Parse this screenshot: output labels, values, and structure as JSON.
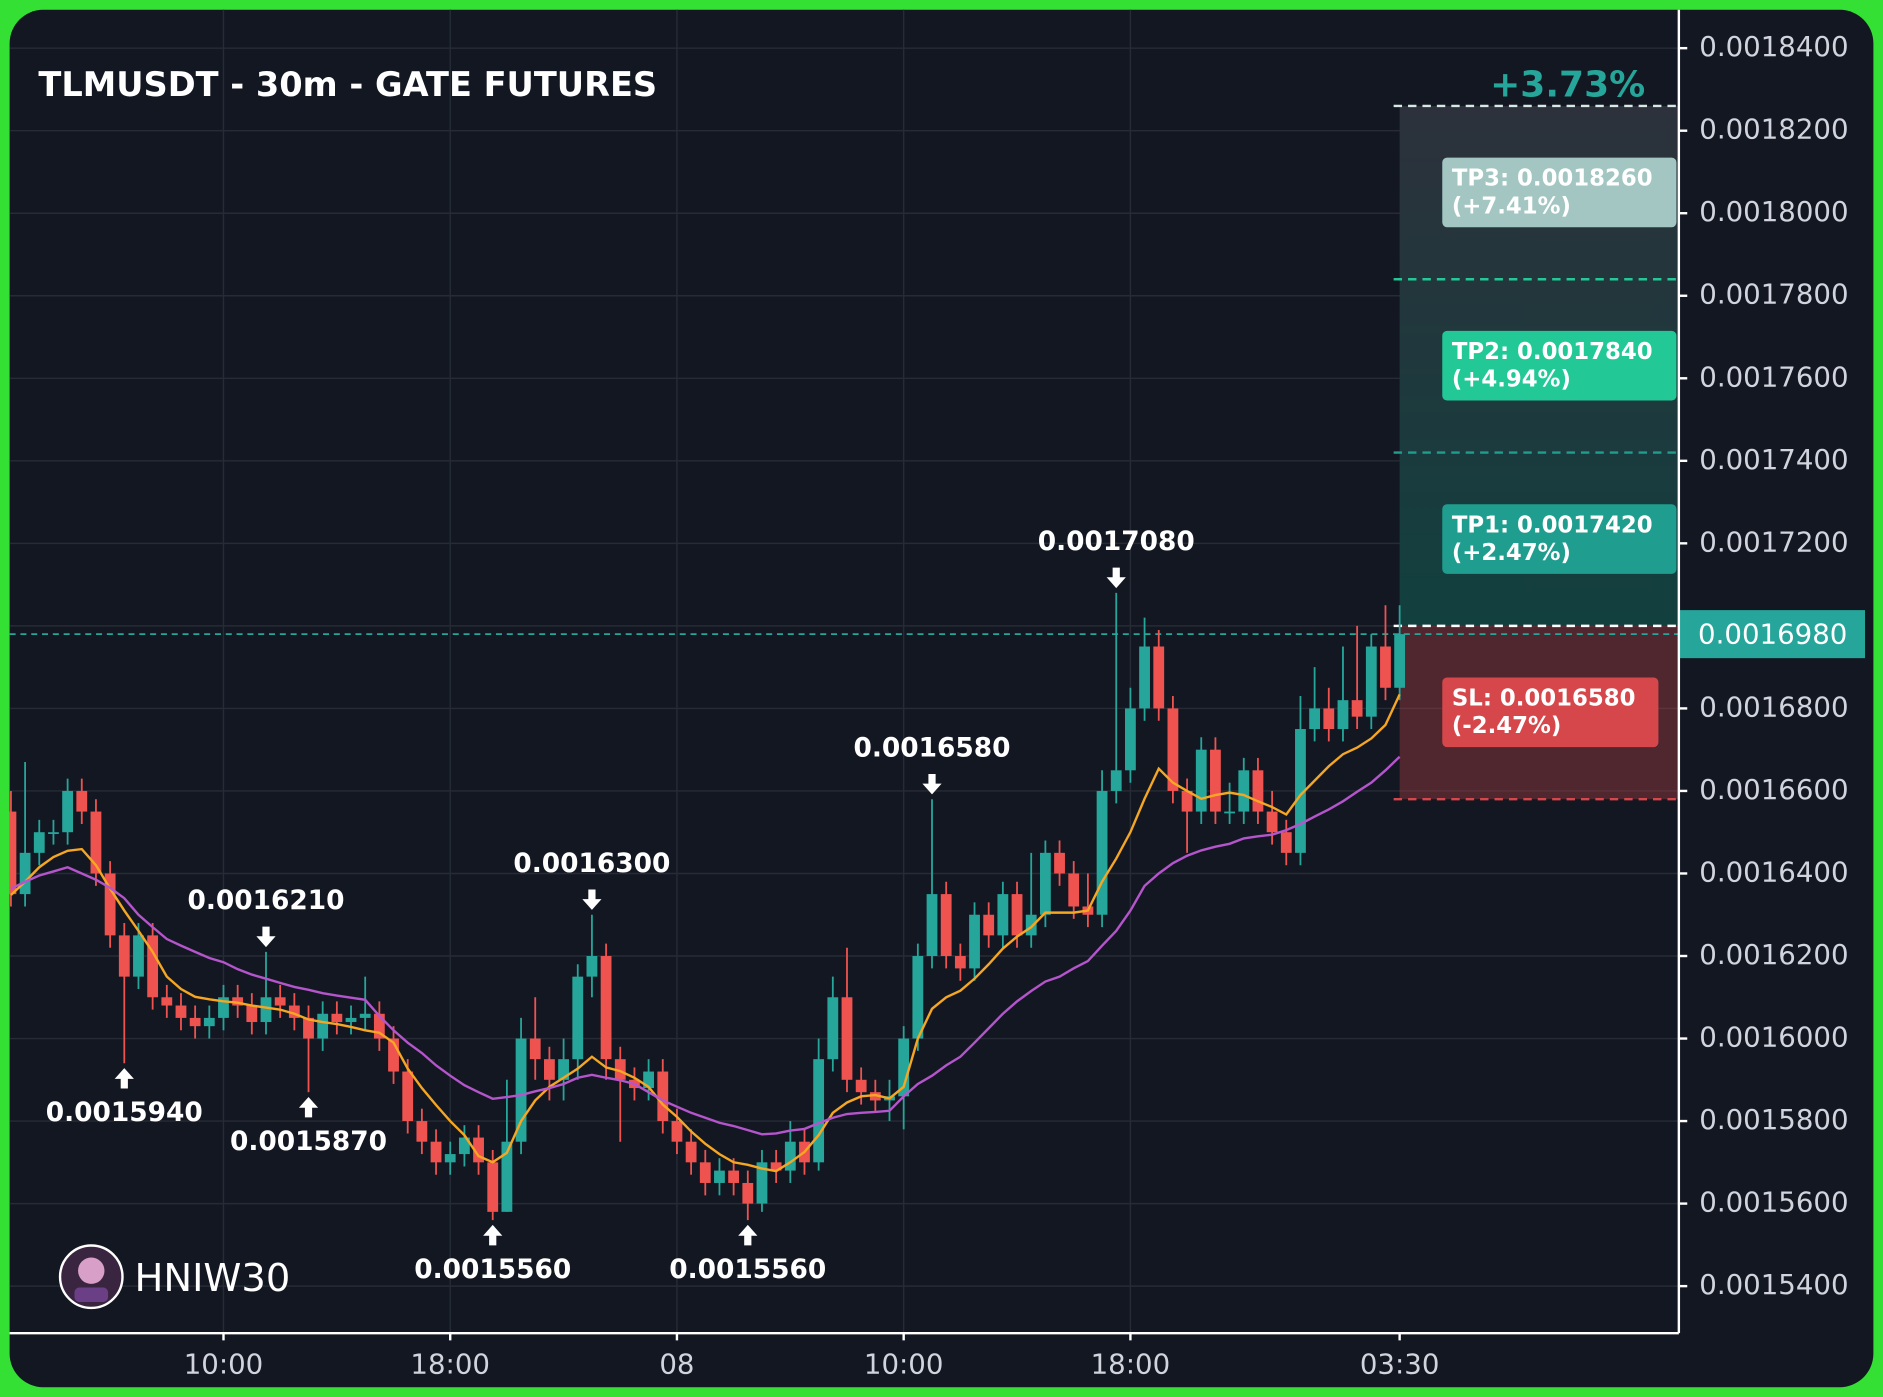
{
  "chart_data": {
    "type": "candlestick",
    "title": "TLMUSDT - 30m - GATE FUTURES",
    "watermark": "HNIW30",
    "categories": [
      null,
      null,
      null,
      null,
      null,
      null,
      null,
      null,
      null,
      null,
      null,
      null,
      null,
      null,
      null,
      "10:00",
      null,
      null,
      null,
      null,
      null,
      null,
      null,
      null,
      null,
      null,
      null,
      null,
      null,
      null,
      null,
      "18:00",
      null,
      null,
      null,
      null,
      null,
      null,
      null,
      null,
      null,
      null,
      null,
      null,
      null,
      null,
      null,
      "08",
      null,
      null,
      null,
      null,
      null,
      null,
      null,
      null,
      null,
      null,
      null,
      null,
      null,
      null,
      null,
      "10:00",
      null,
      null,
      null,
      null,
      null,
      null,
      null,
      null,
      null,
      null,
      null,
      null,
      null,
      null,
      null,
      "18:00",
      null,
      null,
      null,
      null,
      null,
      null,
      null,
      null,
      null,
      null,
      null,
      null,
      null,
      null,
      null,
      null,
      null,
      null,
      "03:30"
    ],
    "open": [
      0.001655,
      0.001635,
      0.001645,
      0.00165,
      0.00165,
      0.00166,
      0.001655,
      0.00164,
      0.001625,
      0.001615,
      0.001625,
      0.00161,
      0.001608,
      0.001605,
      0.001603,
      0.001605,
      0.00161,
      0.001608,
      0.001604,
      0.00161,
      0.001608,
      0.001605,
      0.0016,
      0.001606,
      0.001604,
      0.001605,
      0.001606,
      0.0016,
      0.001592,
      0.00158,
      0.001575,
      0.00157,
      0.001572,
      0.001576,
      0.00157,
      0.001558,
      0.001575,
      0.0016,
      0.001595,
      0.00159,
      0.001595,
      0.001615,
      0.00162,
      0.001595,
      0.00159,
      0.001588,
      0.001592,
      0.00158,
      0.001575,
      0.00157,
      0.001565,
      0.001568,
      0.001565,
      0.00156,
      0.00157,
      0.001568,
      0.001575,
      0.00157,
      0.001595,
      0.00161,
      0.00159,
      0.001587,
      0.001585,
      0.001586,
      0.0016,
      0.00162,
      0.001635,
      0.00162,
      0.001617,
      0.00163,
      0.001625,
      0.001635,
      0.001625,
      0.00163,
      0.001645,
      0.00164,
      0.001632,
      0.00163,
      0.00166,
      0.001665,
      0.00168,
      0.001695,
      0.00168,
      0.00166,
      0.001655,
      0.00167,
      0.001655,
      0.001655,
      0.001665,
      0.001655,
      0.00165,
      0.001645,
      0.001675,
      0.00168,
      0.001675,
      0.001682,
      0.001678,
      0.001695,
      0.001685
    ],
    "high": [
      0.00166,
      0.001667,
      0.001653,
      0.001653,
      0.001663,
      0.001663,
      0.001658,
      0.001643,
      0.001628,
      0.001628,
      0.001628,
      0.001613,
      0.001611,
      0.001608,
      0.001608,
      0.001613,
      0.001613,
      0.001611,
      0.001621,
      0.001613,
      0.001611,
      0.001608,
      0.001609,
      0.001609,
      0.001608,
      0.001615,
      0.001609,
      0.001603,
      0.001595,
      0.001583,
      0.001578,
      0.001575,
      0.001579,
      0.001579,
      0.001573,
      0.00159,
      0.001605,
      0.00161,
      0.001598,
      0.0016,
      0.001618,
      0.00163,
      0.001623,
      0.001598,
      0.001593,
      0.001595,
      0.001595,
      0.001583,
      0.001578,
      0.001573,
      0.001571,
      0.001571,
      0.001568,
      0.001573,
      0.001573,
      0.00158,
      0.001578,
      0.0016,
      0.001615,
      0.001622,
      0.001593,
      0.00159,
      0.00159,
      0.001603,
      0.001623,
      0.001658,
      0.001638,
      0.001623,
      0.001633,
      0.001633,
      0.001638,
      0.001638,
      0.001645,
      0.001648,
      0.001648,
      0.001643,
      0.00164,
      0.001665,
      0.001708,
      0.001685,
      0.001702,
      0.001699,
      0.001683,
      0.001663,
      0.001673,
      0.001673,
      0.001662,
      0.001668,
      0.001668,
      0.00166,
      0.001653,
      0.001683,
      0.00169,
      0.001685,
      0.001695,
      0.0017,
      0.001698,
      0.001705,
      0.001705
    ],
    "low": [
      0.001632,
      0.001632,
      0.001642,
      0.001647,
      0.001647,
      0.001652,
      0.001637,
      0.001622,
      0.001594,
      0.001612,
      0.001607,
      0.001605,
      0.001602,
      0.0016,
      0.0016,
      0.001602,
      0.001605,
      0.001601,
      0.001601,
      0.001605,
      0.001602,
      0.001587,
      0.001597,
      0.001601,
      0.001601,
      0.001602,
      0.001597,
      0.001589,
      0.001577,
      0.001572,
      0.001567,
      0.001567,
      0.001569,
      0.001567,
      0.001556,
      0.001558,
      0.001572,
      0.00159,
      0.001585,
      0.001585,
      0.00159,
      0.00161,
      0.00159,
      0.001575,
      0.001585,
      0.001585,
      0.001577,
      0.001572,
      0.001567,
      0.001562,
      0.001562,
      0.001562,
      0.001556,
      0.001558,
      0.001565,
      0.001565,
      0.001567,
      0.001568,
      0.001592,
      0.001587,
      0.001584,
      0.001582,
      0.00158,
      0.001578,
      0.001597,
      0.001617,
      0.001617,
      0.001614,
      0.001614,
      0.001622,
      0.001622,
      0.001622,
      0.001622,
      0.001627,
      0.001637,
      0.001629,
      0.001627,
      0.001627,
      0.001657,
      0.001662,
      0.001677,
      0.001677,
      0.001657,
      0.001645,
      0.001652,
      0.001652,
      0.001652,
      0.001652,
      0.001652,
      0.001647,
      0.001642,
      0.001642,
      0.001672,
      0.001672,
      0.001672,
      0.001675,
      0.001675,
      0.001682,
      0.001682
    ],
    "close": [
      0.001635,
      0.001645,
      0.00165,
      0.00165,
      0.00166,
      0.001655,
      0.00164,
      0.001625,
      0.001615,
      0.001625,
      0.00161,
      0.001608,
      0.001605,
      0.001603,
      0.001605,
      0.00161,
      0.001608,
      0.001604,
      0.00161,
      0.001608,
      0.001605,
      0.0016,
      0.001606,
      0.001604,
      0.001605,
      0.001606,
      0.0016,
      0.001592,
      0.00158,
      0.001575,
      0.00157,
      0.001572,
      0.001576,
      0.00157,
      0.001558,
      0.001575,
      0.0016,
      0.001595,
      0.00159,
      0.001595,
      0.001615,
      0.00162,
      0.001595,
      0.00159,
      0.001588,
      0.001592,
      0.00158,
      0.001575,
      0.00157,
      0.001565,
      0.001568,
      0.001565,
      0.00156,
      0.00157,
      0.001568,
      0.001575,
      0.00157,
      0.001595,
      0.00161,
      0.00159,
      0.001587,
      0.001585,
      0.001586,
      0.0016,
      0.00162,
      0.001635,
      0.00162,
      0.001617,
      0.00163,
      0.001625,
      0.001635,
      0.001625,
      0.00163,
      0.001645,
      0.00164,
      0.001632,
      0.00163,
      0.00166,
      0.001665,
      0.00168,
      0.001695,
      0.00168,
      0.00166,
      0.001655,
      0.00167,
      0.001655,
      0.001655,
      0.001665,
      0.001655,
      0.00165,
      0.001645,
      0.001675,
      0.00168,
      0.001675,
      0.001682,
      0.001678,
      0.001695,
      0.001685,
      0.001698
    ],
    "high_labels": [
      null,
      null,
      null,
      null,
      null,
      null,
      null,
      null,
      null,
      null,
      null,
      null,
      null,
      null,
      null,
      null,
      null,
      null,
      "0.0016210",
      null,
      null,
      null,
      null,
      null,
      null,
      null,
      null,
      null,
      null,
      null,
      null,
      null,
      null,
      null,
      null,
      null,
      null,
      null,
      null,
      null,
      null,
      "0.0016300",
      null,
      null,
      null,
      null,
      null,
      null,
      null,
      null,
      null,
      null,
      null,
      null,
      null,
      null,
      null,
      null,
      null,
      null,
      null,
      null,
      null,
      null,
      null,
      "0.0016580",
      null,
      null,
      null,
      null,
      null,
      null,
      null,
      null,
      null,
      null,
      null,
      null,
      "0.0017080",
      null,
      null,
      null,
      null,
      null,
      null,
      null,
      null,
      null,
      null,
      null,
      null,
      null,
      null,
      null,
      null,
      null,
      null,
      null,
      null
    ],
    "low_labels": [
      null,
      null,
      null,
      null,
      null,
      null,
      null,
      null,
      "0.0015940",
      null,
      null,
      null,
      null,
      null,
      null,
      null,
      null,
      null,
      null,
      null,
      null,
      "0.0015870",
      null,
      null,
      null,
      null,
      null,
      null,
      null,
      null,
      null,
      null,
      null,
      null,
      "0.0015560",
      null,
      null,
      null,
      null,
      null,
      null,
      null,
      null,
      null,
      null,
      null,
      null,
      null,
      null,
      null,
      null,
      null,
      "0.0015560",
      null,
      null,
      null,
      null,
      null,
      null,
      null,
      null,
      null,
      null,
      null,
      null,
      null,
      null,
      null,
      null,
      null,
      null,
      null,
      null,
      null,
      null,
      null,
      null,
      null,
      null,
      null,
      null,
      null,
      null,
      null,
      null,
      null,
      null,
      null,
      null,
      null,
      null,
      null,
      null,
      null,
      null,
      null,
      null,
      null,
      null
    ],
    "up_color": "#26a69a",
    "down_color": "#ef5350",
    "lines": [
      {
        "color": "#f5a623",
        "values": [
          0.0016348,
          0.001638,
          0.0016415,
          0.001644,
          0.0016455,
          0.0016459,
          0.001642,
          0.0016363,
          0.001631,
          0.0016261,
          0.001621,
          0.001615,
          0.001612,
          0.0016101,
          0.0016095,
          0.001609,
          0.0016087,
          0.001608,
          0.0016075,
          0.001607,
          0.001606,
          0.0016046,
          0.001604,
          0.0016035,
          0.0016028,
          0.001602,
          0.0016014,
          0.001599,
          0.0015927,
          0.001588,
          0.0015839,
          0.00158,
          0.0015766,
          0.0015715,
          0.00157,
          0.0015723,
          0.00158,
          0.001585,
          0.0015883,
          0.0015905,
          0.0015927,
          0.0015956,
          0.001593,
          0.0015921,
          0.0015905,
          0.0015883,
          0.001584,
          0.001581,
          0.0015775,
          0.0015745,
          0.001572,
          0.00157,
          0.0015694,
          0.0015685,
          0.0015679,
          0.00157,
          0.0015725,
          0.0015766,
          0.001582,
          0.0015845,
          0.001586,
          0.0015863,
          0.0015855,
          0.0015883,
          0.0016,
          0.0016072,
          0.00161,
          0.0016116,
          0.0016145,
          0.001618,
          0.0016218,
          0.0016247,
          0.001627,
          0.0016305,
          0.0016305,
          0.0016305,
          0.001631,
          0.001638,
          0.0016436,
          0.00165,
          0.0016581,
          0.0016654,
          0.001662,
          0.00166,
          0.0016581,
          0.001659,
          0.0016596,
          0.001659,
          0.0016575,
          0.0016561,
          0.0016543,
          0.001659,
          0.0016625,
          0.001666,
          0.0016689,
          0.0016705,
          0.0016727,
          0.001676,
          0.0016834
        ]
      },
      {
        "color": "#b455cc",
        "values": [
          0.0016363,
          0.001638,
          0.0016395,
          0.0016405,
          0.0016415,
          0.00164,
          0.0016385,
          0.0016365,
          0.001634,
          0.00163,
          0.001627,
          0.0016241,
          0.0016225,
          0.001621,
          0.0016195,
          0.0016185,
          0.0016168,
          0.0016155,
          0.0016145,
          0.0016135,
          0.0016125,
          0.0016118,
          0.001611,
          0.0016104,
          0.0016099,
          0.0016094,
          0.0016055,
          0.001602,
          0.001599,
          0.0015965,
          0.0015935,
          0.001591,
          0.0015887,
          0.001587,
          0.0015854,
          0.0015858,
          0.0015863,
          0.0015872,
          0.001588,
          0.001589,
          0.0015905,
          0.0015912,
          0.0015905,
          0.0015899,
          0.001589,
          0.001587,
          0.001585,
          0.0015835,
          0.001582,
          0.0015808,
          0.0015796,
          0.0015788,
          0.0015778,
          0.0015768,
          0.001577,
          0.0015777,
          0.0015781,
          0.0015795,
          0.0015808,
          0.0015817,
          0.001582,
          0.0015822,
          0.0015825,
          0.001586,
          0.001589,
          0.001591,
          0.0015935,
          0.0015956,
          0.001599,
          0.0016025,
          0.001606,
          0.001609,
          0.0016115,
          0.0016138,
          0.001615,
          0.001617,
          0.0016188,
          0.0016225,
          0.0016261,
          0.001631,
          0.001637,
          0.00164,
          0.0016425,
          0.0016443,
          0.0016456,
          0.0016465,
          0.0016472,
          0.0016485,
          0.001649,
          0.0016494,
          0.0016505,
          0.001652,
          0.0016538,
          0.0016555,
          0.0016575,
          0.0016598,
          0.001662,
          0.001665,
          0.0016683
        ]
      }
    ],
    "ylim": [
      0.0015286,
      0.0018493
    ],
    "yticks": [
      {
        "value": 0.00154,
        "label": "0.0015400"
      },
      {
        "value": 0.00156,
        "label": "0.0015600"
      },
      {
        "value": 0.00158,
        "label": "0.0015800"
      },
      {
        "value": 0.0016,
        "label": "0.0016000"
      },
      {
        "value": 0.00162,
        "label": "0.0016200"
      },
      {
        "value": 0.00164,
        "label": "0.0016400"
      },
      {
        "value": 0.00166,
        "label": "0.0016600"
      },
      {
        "value": 0.00168,
        "label": "0.0016800"
      },
      {
        "value": 0.0017,
        "label": "0.0017000"
      },
      {
        "value": 0.00172,
        "label": "0.0017200"
      },
      {
        "value": 0.00174,
        "label": "0.0017400"
      },
      {
        "value": 0.00176,
        "label": "0.0017600"
      },
      {
        "value": 0.00178,
        "label": "0.0017800"
      },
      {
        "value": 0.0018,
        "label": "0.0018000"
      },
      {
        "value": 0.00182,
        "label": "0.0018200"
      },
      {
        "value": 0.00184,
        "label": "0.0018400"
      }
    ],
    "grid": true,
    "price_tag": {
      "value": 0.001698,
      "label": "0.0016980",
      "color": "#26a69a"
    },
    "trade": {
      "entry": 0.0017,
      "change_label": "+3.73%",
      "targets": [
        {
          "label": "TP1: 0.0017420",
          "change": "(+2.47%)",
          "value": 0.001742,
          "color": "#1f9e8f"
        },
        {
          "label": "TP2: 0.0017840",
          "change": "(+4.94%)",
          "value": 0.001784,
          "color": "#22c997"
        },
        {
          "label": "TP3: 0.0018260",
          "change": "(+7.41%)",
          "value": 0.001826,
          "color": "#a3c6c2"
        }
      ],
      "stop": {
        "label": "SL: 0.0016580",
        "change": "(-2.47%)",
        "value": 0.001658,
        "color": "#d5474a"
      }
    }
  }
}
